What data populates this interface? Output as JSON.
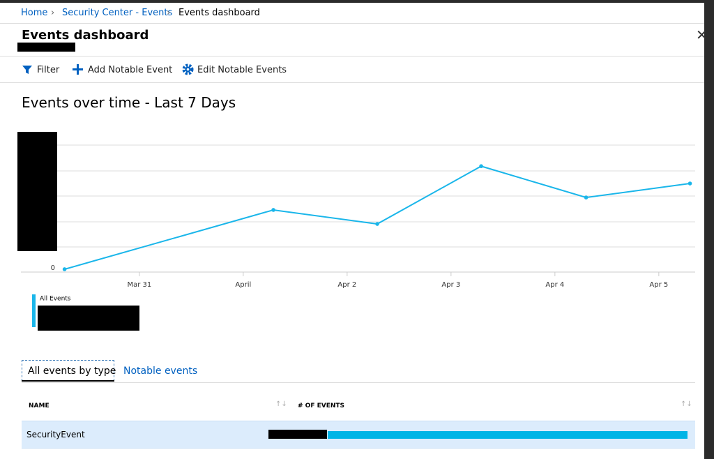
{
  "breadcrumb": [
    "Home",
    "Security Center - Events",
    "Events dashboard"
  ],
  "header": {
    "title": "Events dashboard"
  },
  "toolbar": [
    "Filter",
    "Add Notable Event",
    "Edit Notable Events"
  ],
  "chart_data": {
    "type": "line",
    "title": "Events over time - Last 7 Days",
    "x": [
      -0.72,
      1.29,
      2.29,
      3.29,
      4.3,
      5.3
    ],
    "series": [
      {
        "name": "All Events",
        "color": "#1ab6ea",
        "values": [
          0.11,
          2.44,
          1.89,
          4.16,
          2.93,
          3.48
        ]
      }
    ],
    "xlim": [
      -1.14,
      5.35
    ],
    "xticks": [
      {
        "value": 0,
        "label": "Mar 31"
      },
      {
        "value": 1,
        "label": "April"
      },
      {
        "value": 2,
        "label": "Apr 2"
      },
      {
        "value": 3,
        "label": "Apr 3"
      },
      {
        "value": 4,
        "label": "Apr 4"
      },
      {
        "value": 5,
        "label": "Apr 5"
      }
    ],
    "ylim": [
      0,
      5.4
    ],
    "yticks": [
      0
    ],
    "grid": true
  },
  "tabs": [
    "All events by type",
    "Notable events"
  ],
  "table": {
    "columns": [
      "NAME",
      "# OF EVENTS"
    ],
    "rows": [
      [
        "SecurityEvent"
      ]
    ]
  }
}
